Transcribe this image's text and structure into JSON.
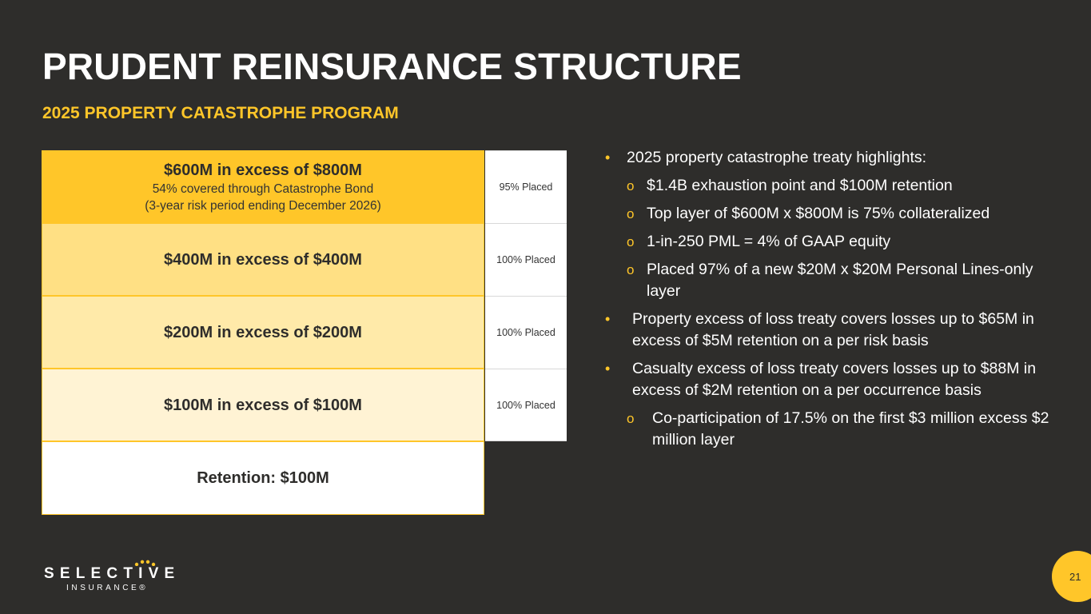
{
  "slide": {
    "title": "PRUDENT REINSURANCE STRUCTURE",
    "subtitle": "2025 PROPERTY CATASTROPHE PROGRAM",
    "page_number": "21"
  },
  "tower": {
    "layers": [
      {
        "label": "$600M in excess of $800M",
        "sub1": "54% covered through Catastrophe Bond",
        "sub2": "(3-year risk period ending December 2026)",
        "placed": "95% Placed"
      },
      {
        "label": "$400M in excess of $400M",
        "placed": "100% Placed"
      },
      {
        "label": "$200M in excess of $200M",
        "placed": "100% Placed"
      },
      {
        "label": "$100M in excess of $100M",
        "placed": "100% Placed"
      },
      {
        "label": "Retention: $100M"
      }
    ]
  },
  "bullets": [
    {
      "level": 1,
      "marker": "•",
      "text": "2025 property catastrophe treaty highlights:"
    },
    {
      "level": 2,
      "marker": "o",
      "text": "$1.4B exhaustion point and $100M retention"
    },
    {
      "level": 2,
      "marker": "o",
      "text": "Top layer of $600M x $800M is 75% collateralized"
    },
    {
      "level": 2,
      "marker": "o",
      "text": "1-in-250 PML = 4% of GAAP equity"
    },
    {
      "level": 2,
      "marker": "o",
      "text": "Placed 97% of a new $20M x $20M Personal Lines-only layer"
    },
    {
      "level": 1,
      "marker": "•",
      "text": "Property excess of loss treaty covers losses up to $65M in excess of $5M retention on a per risk basis"
    },
    {
      "level": 1,
      "marker": "•",
      "text": "Casualty excess of loss treaty covers losses up to $88M in excess of $2M retention on a per occurrence basis"
    },
    {
      "level": 2,
      "marker": "o",
      "text": "Co-participation of 17.5% on the first $3 million excess $2 million layer"
    }
  ],
  "logo": {
    "word": "SELECTIVE",
    "tagline": "INSURANCE®"
  },
  "colors": {
    "background": "#2e2d2b",
    "accent": "#ffc629"
  }
}
